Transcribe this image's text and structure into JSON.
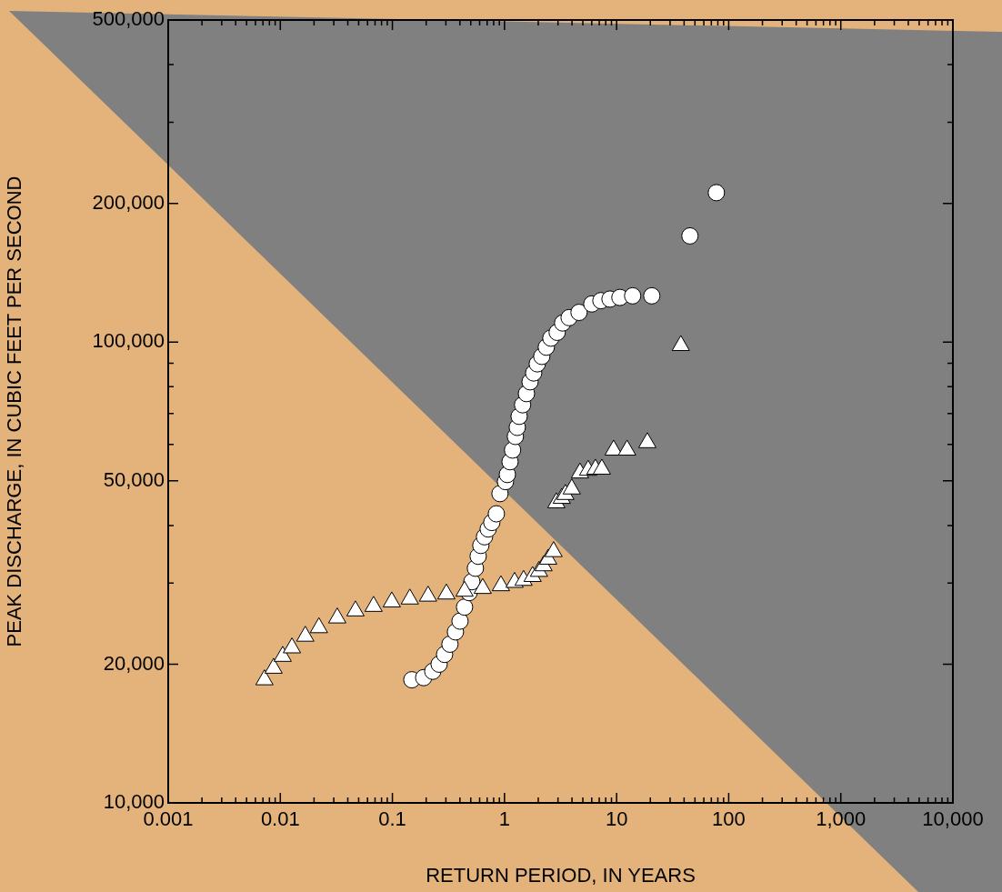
{
  "chart_data": {
    "type": "scatter",
    "xlabel": "RETURN PERIOD, IN YEARS",
    "ylabel": "PEAK DISCHARGE, IN CUBIC FEET PER SECOND",
    "log": "xy",
    "xlim": [
      0.001,
      10000
    ],
    "ylim": [
      10000,
      500000
    ],
    "xticks": [
      0.001,
      {
        "value": 0.002,
        "label": null
      },
      {
        "value": 0.003,
        "label": null
      },
      {
        "value": 0.004,
        "label": null
      },
      {
        "value": 0.005,
        "label": null
      },
      {
        "value": 0.006,
        "label": null
      },
      {
        "value": 0.007,
        "label": null
      },
      {
        "value": 0.008,
        "label": null
      },
      {
        "value": 0.009,
        "label": null
      },
      0.01,
      {
        "value": 0.02,
        "label": null
      },
      {
        "value": 0.03,
        "label": null
      },
      {
        "value": 0.04,
        "label": null
      },
      {
        "value": 0.05,
        "label": null
      },
      {
        "value": 0.06,
        "label": null
      },
      {
        "value": 0.07,
        "label": null
      },
      {
        "value": 0.08,
        "label": null
      },
      {
        "value": 0.09,
        "label": null
      },
      0.1,
      {
        "value": 0.2,
        "label": null
      },
      {
        "value": 0.3,
        "label": null
      },
      {
        "value": 0.4,
        "label": null
      },
      {
        "value": 0.5,
        "label": null
      },
      {
        "value": 0.6,
        "label": null
      },
      {
        "value": 0.7,
        "label": null
      },
      {
        "value": 0.8,
        "label": null
      },
      {
        "value": 0.9,
        "label": null
      },
      1,
      {
        "value": 2,
        "label": null
      },
      {
        "value": 3,
        "label": null
      },
      {
        "value": 4,
        "label": null
      },
      {
        "value": 5,
        "label": null
      },
      {
        "value": 6,
        "label": null
      },
      {
        "value": 7,
        "label": null
      },
      {
        "value": 8,
        "label": null
      },
      {
        "value": 9,
        "label": null
      },
      10,
      {
        "value": 20,
        "label": null
      },
      {
        "value": 30,
        "label": null
      },
      {
        "value": 40,
        "label": null
      },
      {
        "value": 50,
        "label": null
      },
      {
        "value": 60,
        "label": null
      },
      {
        "value": 70,
        "label": null
      },
      {
        "value": 80,
        "label": null
      },
      {
        "value": 90,
        "label": null
      },
      100,
      {
        "value": 200,
        "label": null
      },
      {
        "value": 300,
        "label": null
      },
      {
        "value": 400,
        "label": null
      },
      {
        "value": 500,
        "label": null
      },
      {
        "value": 600,
        "label": null
      },
      {
        "value": 700,
        "label": null
      },
      {
        "value": 800,
        "label": null
      },
      {
        "value": 900,
        "label": null
      },
      {
        "value": 1000,
        "label": "1,000"
      },
      {
        "value": 2000,
        "label": null
      },
      {
        "value": 3000,
        "label": null
      },
      {
        "value": 4000,
        "label": null
      },
      {
        "value": 5000,
        "label": null
      },
      {
        "value": 6000,
        "label": null
      },
      {
        "value": 7000,
        "label": null
      },
      {
        "value": 8000,
        "label": null
      },
      {
        "value": 9000,
        "label": null
      },
      {
        "value": 10000,
        "label": "10,000"
      }
    ],
    "yticks": [
      {
        "value": 10000,
        "label": "10,000"
      },
      {
        "value": 20000,
        "label": "20,000"
      },
      {
        "value": 30000,
        "label": null
      },
      {
        "value": 40000,
        "label": null
      },
      {
        "value": 50000,
        "label": "50,000"
      },
      {
        "value": 60000,
        "label": null
      },
      {
        "value": 70000,
        "label": null
      },
      {
        "value": 80000,
        "label": null
      },
      {
        "value": 90000,
        "label": null
      },
      {
        "value": 100000,
        "label": "100,000"
      },
      {
        "value": 200000,
        "label": "200,000"
      },
      {
        "value": 300000,
        "label": null
      },
      {
        "value": 400000,
        "label": null
      },
      {
        "value": 500000,
        "label": "500,000"
      }
    ],
    "series": [
      {
        "color": "#ffffff",
        "marker": "circle",
        "x": [
          0.149,
          0.19,
          0.229,
          0.261,
          0.292,
          0.326,
          0.365,
          0.401,
          0.44,
          0.483,
          0.511,
          0.55,
          0.582,
          0.615,
          0.663,
          0.715,
          0.77,
          0.846,
          0.911,
          1.02,
          1.06,
          1.12,
          1.18,
          1.25,
          1.3,
          1.35,
          1.45,
          1.57,
          1.69,
          1.82,
          1.96,
          2.15,
          2.36,
          2.59,
          2.95,
          3.3,
          3.77,
          4.62,
          6.01,
          7.24,
          8.73,
          10.7,
          13.9,
          20.6,
          45.1,
          77.6
        ],
        "values": [
          18500,
          18700,
          19300,
          20000,
          21000,
          22100,
          23500,
          24800,
          26600,
          28600,
          30200,
          32300,
          34300,
          36200,
          37800,
          39300,
          40600,
          42400,
          46900,
          49800,
          51600,
          55000,
          58300,
          62400,
          65300,
          69000,
          73100,
          77300,
          82000,
          85700,
          89700,
          93100,
          97500,
          102000,
          105000,
          110000,
          113000,
          116000,
          121000,
          123000,
          124000,
          125000,
          126000,
          126000,
          170000,
          211000
        ]
      },
      {
        "color": "#ffffff",
        "marker": "triangle",
        "x": [
          0.00722,
          0.00871,
          0.0105,
          0.0127,
          0.0167,
          0.0221,
          0.0322,
          0.0468,
          0.0679,
          0.0987,
          0.143,
          0.208,
          0.303,
          0.44,
          0.639,
          0.929,
          1.23,
          1.48,
          1.78,
          2.03,
          2.23,
          2.45,
          2.74,
          2.9,
          3.24,
          3.49,
          3.98,
          4.71,
          5.57,
          6.47,
          7.38,
          9.4,
          12.4,
          18.8,
          37.4
        ],
        "values": [
          18500,
          19600,
          20800,
          21700,
          23000,
          24000,
          25200,
          26100,
          26700,
          27300,
          27700,
          28100,
          28400,
          28800,
          29200,
          29600,
          30100,
          30400,
          31000,
          31800,
          32700,
          33800,
          35100,
          44800,
          45800,
          46700,
          48000,
          52000,
          52700,
          53000,
          53000,
          58300,
          58300,
          60500,
          98300
        ]
      }
    ]
  }
}
